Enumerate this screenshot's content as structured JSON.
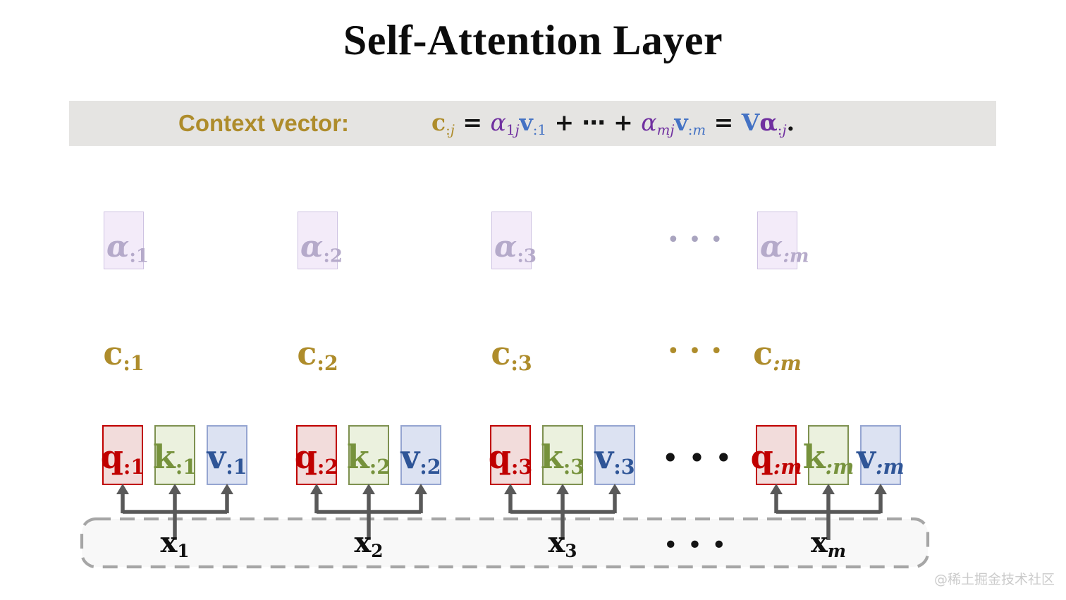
{
  "title": "Self-Attention Layer",
  "banner": {
    "label": "Context vector:",
    "formula_tokens": [
      {
        "t": "c",
        "c": "gold",
        "b": true
      },
      {
        "t": ":",
        "c": "gold",
        "sub": true
      },
      {
        "t": "j",
        "c": "gold",
        "sub": true,
        "i": true
      },
      {
        "t": " = ",
        "c": "black",
        "b": true
      },
      {
        "t": "α",
        "c": "purple",
        "i": true
      },
      {
        "t": "1",
        "c": "purple",
        "sub": true
      },
      {
        "t": "j",
        "c": "purple",
        "sub": true,
        "i": true
      },
      {
        "t": "v",
        "c": "blue",
        "b": true
      },
      {
        "t": ":",
        "c": "blue",
        "sub": true
      },
      {
        "t": "1",
        "c": "blue",
        "sub": true
      },
      {
        "t": " + ⋯ + ",
        "c": "black",
        "b": true
      },
      {
        "t": "α",
        "c": "purple",
        "i": true
      },
      {
        "t": "m",
        "c": "purple",
        "sub": true,
        "i": true
      },
      {
        "t": "j",
        "c": "purple",
        "sub": true,
        "i": true
      },
      {
        "t": "v",
        "c": "blue",
        "b": true
      },
      {
        "t": ":",
        "c": "blue",
        "sub": true
      },
      {
        "t": "m",
        "c": "blue",
        "sub": true,
        "i": true
      },
      {
        "t": " = ",
        "c": "black",
        "b": true
      },
      {
        "t": "V",
        "c": "blue",
        "b": true
      },
      {
        "t": "α",
        "c": "purple",
        "b": true
      },
      {
        "t": ":",
        "c": "purple",
        "sub": true
      },
      {
        "t": "j",
        "c": "purple",
        "sub": true,
        "i": true
      },
      {
        "t": ".",
        "c": "black",
        "b": true
      }
    ]
  },
  "columns": [
    {
      "id": "1",
      "alpha": "α",
      "alpha_sub": ":1",
      "c": "c",
      "c_sub": ":1",
      "q": "q",
      "q_sub": ":1",
      "k": "k",
      "k_sub": ":1",
      "v": "v",
      "v_sub": ":1",
      "x": "x",
      "x_sub": "1"
    },
    {
      "id": "2",
      "alpha": "α",
      "alpha_sub": ":2",
      "c": "c",
      "c_sub": ":2",
      "q": "q",
      "q_sub": ":2",
      "k": "k",
      "k_sub": ":2",
      "v": "v",
      "v_sub": ":2",
      "x": "x",
      "x_sub": "2"
    },
    {
      "id": "3",
      "alpha": "α",
      "alpha_sub": ":3",
      "c": "c",
      "c_sub": ":3",
      "q": "q",
      "q_sub": ":3",
      "k": "k",
      "k_sub": ":3",
      "v": "v",
      "v_sub": ":3",
      "x": "x",
      "x_sub": "3"
    },
    {
      "id": "m",
      "alpha": "α",
      "alpha_sub": ":m",
      "c": "c",
      "c_sub": ":m",
      "q": "q",
      "q_sub": ":m",
      "k": "k",
      "k_sub": ":m",
      "v": "v",
      "v_sub": ":m",
      "x": "x",
      "x_sub": "m"
    }
  ],
  "ellipsis": {
    "alpha_row": "•••",
    "c_row": "•••",
    "qkv_row": "•••",
    "x_row": "•••"
  },
  "watermark": "@稀土掘金技术社区",
  "colors": {
    "gold": "#AE8C2B",
    "purple": "#7030A0",
    "blue": "#4472C4",
    "black": "#141414",
    "banner_bg": "#E5E4E2",
    "q_red": "#C00000",
    "q_fill": "#F2DCDB",
    "k_border": "#7E9150",
    "k_text": "#76923C",
    "k_fill": "#EBF1DE",
    "v_border": "#95A5D1",
    "v_text": "#2F5597",
    "v_fill": "#DCE2F2",
    "alpha_fill": "#F3EBF9",
    "alpha_border": "#CEC2E2",
    "alpha_text": "#B5AACA",
    "alpha_dots": "#A9A4BF",
    "arrow": "#595959",
    "dash": "#A6A6A6",
    "dash_fill": "#F8F8F8",
    "watermark": "#CBCBCB"
  }
}
